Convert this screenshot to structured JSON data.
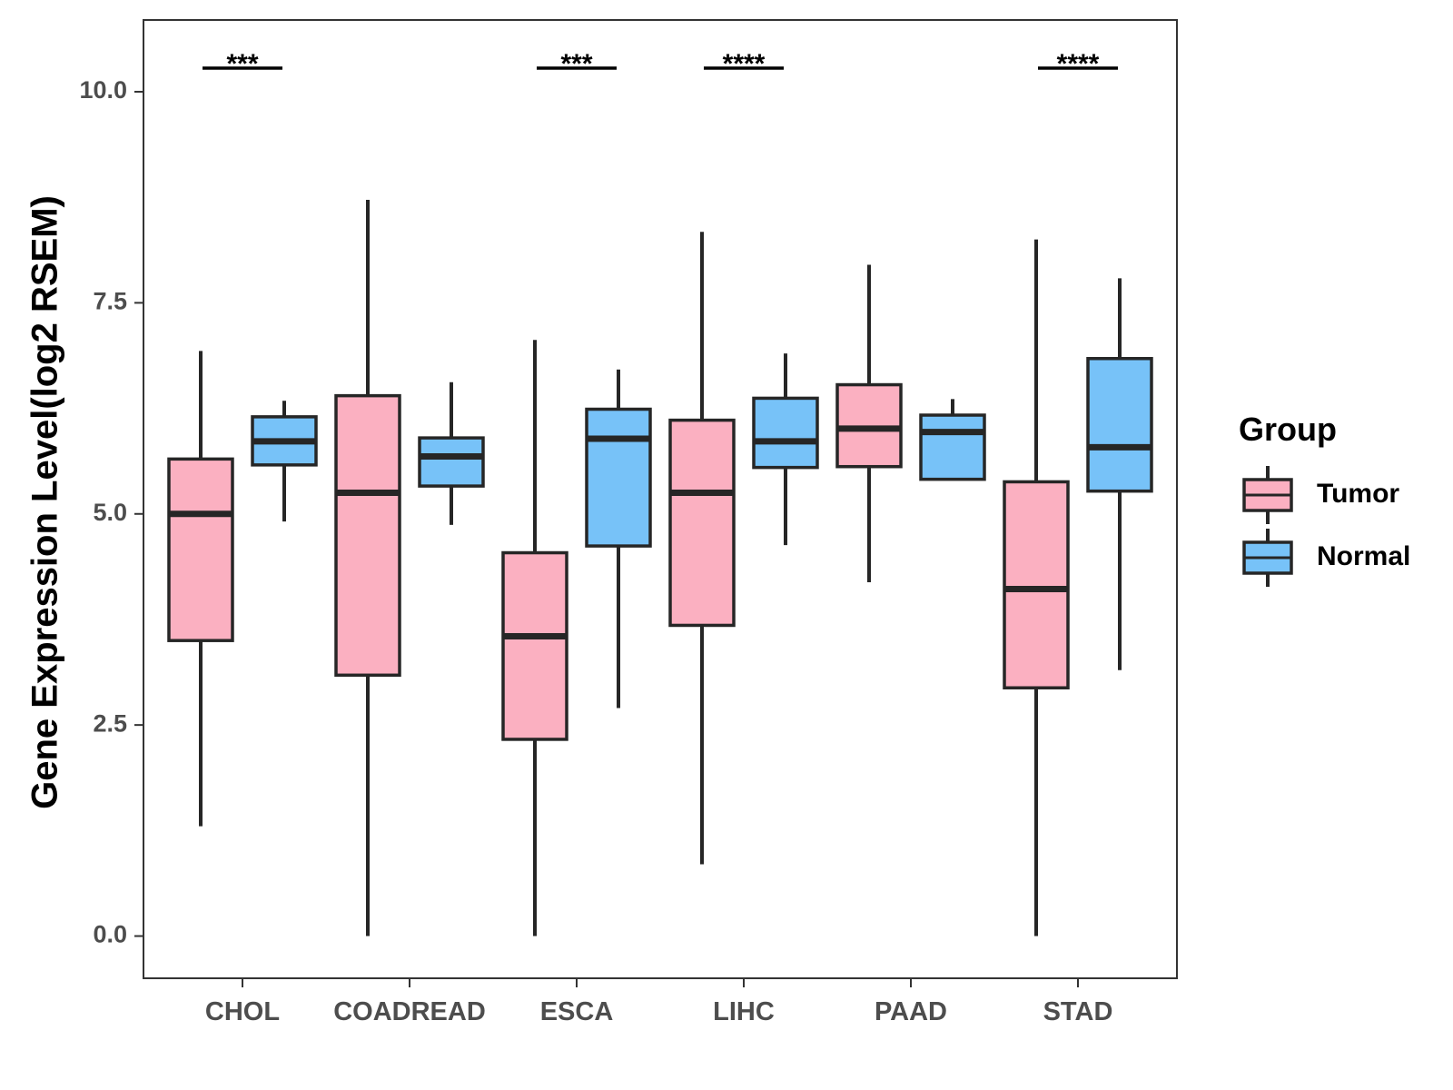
{
  "chart_data": {
    "type": "boxplot",
    "title": "",
    "xlabel": "",
    "ylabel": "Gene Expression Level(log2 RSEM)",
    "ylim": [
      -0.5,
      10.85
    ],
    "yticks": [
      0.0,
      2.5,
      5.0,
      7.5,
      10.0
    ],
    "ytick_labels": [
      "0.0",
      "2.5",
      "5.0",
      "7.5",
      "10.0"
    ],
    "grid": false,
    "legend": {
      "title": "Group",
      "position": "right"
    },
    "categories": [
      "CHOL",
      "COADREAD",
      "ESCA",
      "LIHC",
      "PAAD",
      "STAD"
    ],
    "series": [
      {
        "name": "Tumor",
        "color": "#FBB0C1",
        "boxes": [
          {
            "whisker_low": 1.3,
            "q1": 3.5,
            "median": 5.0,
            "q3": 5.65,
            "whisker_high": 6.93
          },
          {
            "whisker_low": 0.0,
            "q1": 3.09,
            "median": 5.25,
            "q3": 6.4,
            "whisker_high": 8.72
          },
          {
            "whisker_low": 0.0,
            "q1": 2.33,
            "median": 3.55,
            "q3": 4.54,
            "whisker_high": 7.06
          },
          {
            "whisker_low": 0.85,
            "q1": 3.68,
            "median": 5.25,
            "q3": 6.11,
            "whisker_high": 8.34
          },
          {
            "whisker_low": 4.19,
            "q1": 5.56,
            "median": 6.01,
            "q3": 6.53,
            "whisker_high": 7.95
          },
          {
            "whisker_low": 0.0,
            "q1": 2.94,
            "median": 4.11,
            "q3": 5.38,
            "whisker_high": 8.25
          }
        ]
      },
      {
        "name": "Normal",
        "color": "#77C2F8",
        "boxes": [
          {
            "whisker_low": 4.91,
            "q1": 5.58,
            "median": 5.86,
            "q3": 6.15,
            "whisker_high": 6.34
          },
          {
            "whisker_low": 4.87,
            "q1": 5.33,
            "median": 5.68,
            "q3": 5.9,
            "whisker_high": 6.56
          },
          {
            "whisker_low": 2.7,
            "q1": 4.62,
            "median": 5.89,
            "q3": 6.24,
            "whisker_high": 6.71
          },
          {
            "whisker_low": 4.63,
            "q1": 5.55,
            "median": 5.86,
            "q3": 6.37,
            "whisker_high": 6.9
          },
          {
            "whisker_low": 5.41,
            "q1": 5.41,
            "median": 5.97,
            "q3": 6.17,
            "whisker_high": 6.36
          },
          {
            "whisker_low": 3.15,
            "q1": 5.27,
            "median": 5.79,
            "q3": 6.84,
            "whisker_high": 7.79
          }
        ]
      }
    ],
    "significance": [
      {
        "category": "CHOL",
        "label": "***"
      },
      {
        "category": "ESCA",
        "label": "***"
      },
      {
        "category": "LIHC",
        "label": "****"
      },
      {
        "category": "STAD",
        "label": "****"
      }
    ]
  }
}
